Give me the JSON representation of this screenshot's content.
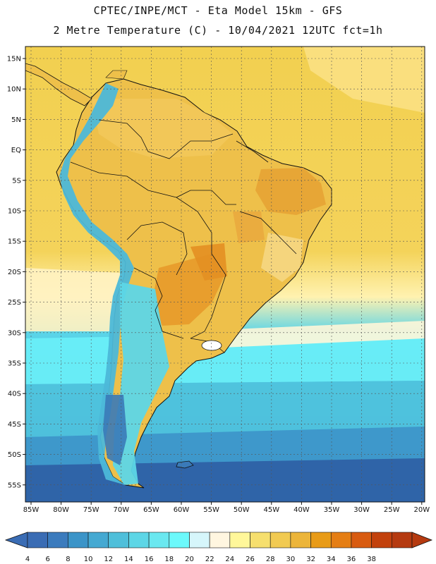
{
  "header": {
    "title_line1": "CPTEC/INPE/MCT -  Eta Model 15km - GFS",
    "title_line2": "2 Metre Temperature (C) - 10/04/2021 12UTC fct=1h"
  },
  "map": {
    "variable": "2 Metre Temperature",
    "units": "C",
    "lat_labels": [
      "15N",
      "10N",
      "5N",
      "EQ",
      "5S",
      "10S",
      "15S",
      "20S",
      "25S",
      "30S",
      "35S",
      "40S",
      "45S",
      "50S",
      "55S"
    ],
    "lon_labels": [
      "85W",
      "80W",
      "75W",
      "70W",
      "65W",
      "60W",
      "55W",
      "50W",
      "45W",
      "40W",
      "35W",
      "30W",
      "25W",
      "20W"
    ],
    "ocean_color": "#f2d34a",
    "land_color": "#eec04a"
  },
  "colorbar": {
    "labels": [
      "4",
      "6",
      "8",
      "10",
      "12",
      "14",
      "16",
      "18",
      "20",
      "22",
      "24",
      "26",
      "28",
      "30",
      "32",
      "34",
      "36",
      "38"
    ],
    "low_color": "#3a6cb4",
    "high_color": "#b53a10",
    "colors": [
      "#3a6cb4",
      "#3b7bbd",
      "#3b94c8",
      "#45a9d2",
      "#4fbfda",
      "#5dd6e6",
      "#6ae8f0",
      "#6cf9fb",
      "#d6f6fb",
      "#fff6e0",
      "#fff79a",
      "#f6df6e",
      "#f1ca52",
      "#ecb53a",
      "#e89b17",
      "#e57e14",
      "#d85b10",
      "#c2410c",
      "#b53a10"
    ]
  }
}
